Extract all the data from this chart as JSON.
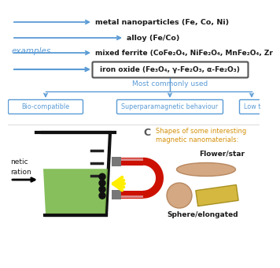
{
  "bg_color": "#ffffff",
  "arrow_color": "#5b9bd5",
  "text_color": "#1a1a1a",
  "blue_text": "#5b9bd5",
  "orange_text": "#d4900a",
  "gray_text": "#888888",
  "examples_text": "examples",
  "line1": "metal nanoparticles (Fe, Co, Ni)",
  "line2": "alloy (Fe/Co)",
  "line3": "mixed ferrite (CoFe₂O₄, NiFe₂O₄, MnFe₂O₄, Zr",
  "line4_box": "iron oxide (Fe₃O₄, γ-Fe₂O₃, α-Fe₂O₃)",
  "most_common": "Most commonly used",
  "box1": "Bio-compatible",
  "box2": "Superparamagnetic behaviour",
  "box3": "Low t",
  "label_C": "C",
  "shapes_title1": "Shapes of some interesting",
  "shapes_title2": "magnetic nanomaterials:",
  "flower_label": "Flower/star",
  "sphere_label": "Sphere/elongated",
  "mag_label1": "netic",
  "mag_label2": "ration",
  "green_liquid": "#7ab84a",
  "beaker_color": "#111111",
  "magnet_red": "#cc1100",
  "magnet_gray": "#777777",
  "magnet_pink": "#dd8888",
  "yellow_flash": "#ffee00",
  "shape_tan": "#d4a882",
  "shape_yellow": "#d4b840",
  "shape_edge_tan": "#b88860",
  "shape_edge_yellow": "#a89020"
}
